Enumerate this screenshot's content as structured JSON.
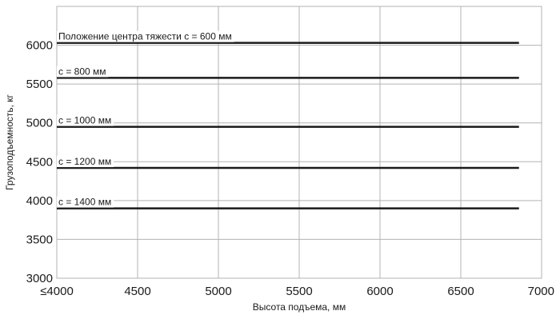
{
  "chart_data": {
    "type": "line",
    "title": "",
    "xlabel": "Высота подъема, мм",
    "ylabel": "Грузоподъемность, кг",
    "xlim": [
      4000,
      7000
    ],
    "ylim": [
      3000,
      6500
    ],
    "x_ticks": [
      4000,
      4500,
      5000,
      5500,
      6000,
      6500,
      7000
    ],
    "x_tick_labels": [
      "≤4000",
      "4500",
      "5000",
      "5500",
      "6000",
      "6500",
      "7000"
    ],
    "y_ticks": [
      3000,
      3500,
      4000,
      4500,
      5000,
      5500,
      6000
    ],
    "y_tick_labels": [
      "3000",
      "3500",
      "4000",
      "4500",
      "5000",
      "5500",
      "6000"
    ],
    "grid": true,
    "legend": "none",
    "line_color": "#1a1a1a",
    "grid_color": "#b3b3b3",
    "series": [
      {
        "name": "Положение центра тяжести c = 600 мм",
        "x": [
          4000,
          6860
        ],
        "y": [
          6030,
          6030
        ]
      },
      {
        "name": "c = 800 мм",
        "x": [
          4000,
          6860
        ],
        "y": [
          5580,
          5580
        ]
      },
      {
        "name": "c = 1000 мм",
        "x": [
          4000,
          6860
        ],
        "y": [
          4950,
          4950
        ]
      },
      {
        "name": "c = 1200 мм",
        "x": [
          4000,
          6860
        ],
        "y": [
          4420,
          4420
        ]
      },
      {
        "name": "c = 1400 мм",
        "x": [
          4000,
          6860
        ],
        "y": [
          3900,
          3900
        ]
      }
    ]
  }
}
